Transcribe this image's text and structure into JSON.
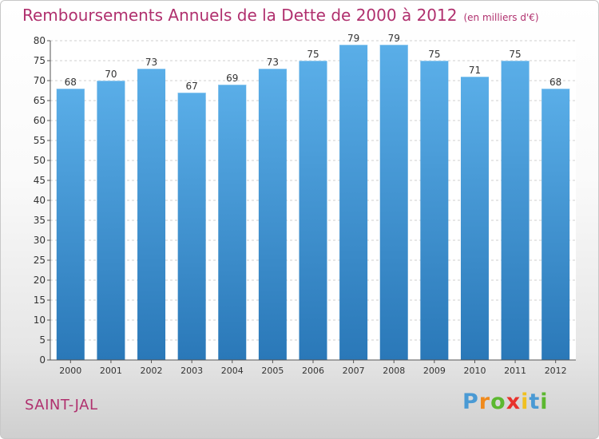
{
  "header": {
    "title": "Remboursements Annuels de la Dette de 2000 à 2012",
    "unit": "(en milliers d'€)"
  },
  "commune": "SAINT-JAL",
  "logo": {
    "letters": [
      "P",
      "r",
      "o",
      "x",
      "i",
      "t",
      "i"
    ],
    "colors": [
      "#4a9ad4",
      "#f08a1c",
      "#5cb830",
      "#e8322c",
      "#f0c020",
      "#4a9ad4",
      "#5cb830"
    ]
  },
  "chart_data": {
    "type": "bar",
    "title": "Remboursements Annuels de la Dette de 2000 à 2012",
    "xlabel": "",
    "ylabel": "",
    "categories": [
      "2000",
      "2001",
      "2002",
      "2003",
      "2004",
      "2005",
      "2006",
      "2007",
      "2008",
      "2009",
      "2010",
      "2011",
      "2012"
    ],
    "values": [
      68,
      70,
      73,
      67,
      69,
      73,
      75,
      79,
      79,
      75,
      71,
      75,
      68
    ],
    "ylim": [
      0,
      80
    ],
    "yticks": [
      0,
      5,
      10,
      15,
      20,
      25,
      30,
      35,
      40,
      45,
      50,
      55,
      60,
      65,
      70,
      75,
      80
    ],
    "grid": true,
    "bar_color_top": "#5aaee8",
    "bar_color_bottom": "#2a78b8"
  }
}
